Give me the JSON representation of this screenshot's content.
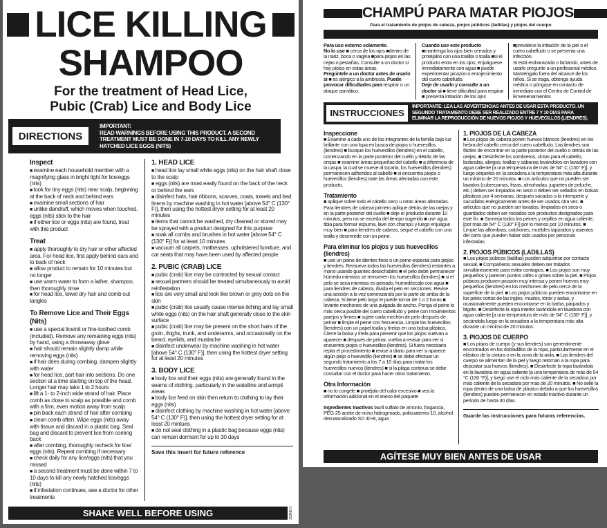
{
  "english": {
    "title_line1": "LICE KILLING",
    "title_line2": "SHAMPOO",
    "subtitle_line1": "For the treatment of Head Lice,",
    "subtitle_line2": "Pubic (Crab) Lice and Body Lice",
    "directions_label": "DIRECTIONS",
    "important_heading": "IMPORTANT:",
    "important_text": "READ WARNINGS BEFORE USING THIS PRODUCT.  A SECOND TREATMENT MUST BE DONE IN 7-10 DAYS TO KILL ANY NEWLY HATCHED LICE EGGS (NITS)",
    "left_sections": [
      {
        "heading": "Inspect",
        "items": [
          "examine each household member with a magnifying glass in bright light for lice/eggs (nits)",
          "look for tiny eggs (nits) near scalp, beginning at the back of neck and behind ears",
          "examine small sections of hair",
          "unlike dandruff, which moves when touched, eggs (nits) stick to the hair",
          "if either lice or eggs (nits) are found, treat with this product"
        ]
      },
      {
        "heading": "Treat",
        "items": [
          "apply thoroughly to dry hair or other affected area.  For head lice, first apply behind ears and to back of neck",
          "allow product to remain for 10 minutes but no longer",
          "use warm water to form a lather, shampoo, then thoroughly rinse",
          "for head lice, towel dry hair and comb out tangles"
        ]
      },
      {
        "heading": "To Remove Lice and Their Eggs (Nits)",
        "items": [
          "use a special lice/nit or fine-toothed comb (included).  Remove any remaining eggs (nits) by hand, using a throwaway glove",
          "hair should remain slightly damp while removing eggs (nits)",
          "if hair dries during combing, dampen slightly with water",
          "for head lice, part hair into sections.  Do one section at a time starting on top of the head. Longer hair may take 1 to 2 hours",
          "lift a 1- to 2-inch wide strand of hair. Place comb as close to scalp as possible and comb with a firm, even motion away from scalp",
          "pin back each strand of hair after combing",
          "clean comb often.  Wipe eggs (nits) away with tissue and discard in a plastic bag.  Seal bag and discard to prevent lice from coming back",
          "after combing, thoroughly recheck for lice/ eggs (nits).  Repeat combing if necessary",
          "check daily for any lice/eggs (nits) that you missed",
          "a second treatment must be done within 7 to 10 days to kill any newly hatched lice/eggs (nits)",
          "if infestation continues, see a doctor for other treatments"
        ]
      }
    ],
    "right_sections": [
      {
        "heading": "1.  HEAD LICE",
        "items": [
          "head lice lay small white eggs (nits) on the hair shaft close to the scalp",
          "eggs (nits) are most easily found on the back of the neck or behind the ears",
          "disinfect hats, hair ribbons, scarves, coats, towels and bed linens by machine washing in hot water [above 54° C (130° F)], then using the hottest dryer setting for at least 20 minutes",
          "items that cannot be washed, dry cleaned or stored may be sprayed with a product designed for this purpose",
          "soak all combs and brushes in hot water [above 54° C (130° F)] for at least 10 minutes",
          "vacuum all carpets, mattresses, upholstered furniture, and car seats that may have been used by affected people"
        ]
      },
      {
        "heading": "2.  PUBIC (CRAB) LICE",
        "items": [
          "pubic (crab) lice may be contracted by sexual contact",
          "sexual partners should be treated simultaneously to avoid reinfestation",
          "lice are very small and look like brown or grey dots on the skin",
          "pubic (crab) lice usually cause intense itching and lay small white eggs (nits) on the hair shaft generally close to the skin surface",
          "pubic (crab) lice may be present on the short hairs of the groin, thighs, trunk, and underarms, and occasionally on the beard, eyelids, and mustache",
          "disinfect underwear by machine washing in hot water [above 54° C (130° F)], then using the hottest dryer setting for at least 20 minutes"
        ]
      },
      {
        "heading": "3.  BODY LICE",
        "items": [
          "body lice and their eggs (nits) are generally found in the seams of clothing, particularly in the waistline and armpit areas",
          "body lice feed on skin then return to clothing to lay their eggs (nits)",
          "disinfect clothing by machine washing in hot water [above 54° C (130° F)], then using the hottest dryer setting for at least 20 mintues",
          "do not seal clothing in a plastic bag because eggs (nits) can remain dormant for up to 30 days"
        ]
      }
    ],
    "save_note": "Save this insert for future reference",
    "bottom_banner": "SHAKE WELL BEFORE USING",
    "code": "253N6.0"
  },
  "spanish": {
    "title": "CHAMPÚ PARA MATAR PIOJOS",
    "subtitle": "Para el tratamiento de piojos de cabeza, piojos públicos (ladillas) y piojos del cuerpo",
    "warnings": [
      [
        [
          [
            "Para uso externo solamente.",
            true
          ]
        ],
        [
          [
            "No lo use ",
            true
          ],
          [
            "■ cerca de los ojos ■dentro de la nariz, boca o vagina ■para piojos en las cejas o pestañas. Consulte a un doctor si hay piojos en estas áreas.",
            false
          ]
        ],
        [
          [
            "Pregúntele a un doctor antes de usarlo si ",
            true
          ],
          [
            "■ es alérgico a la ambrosía. ",
            false
          ],
          [
            "Puede provocar dificultades para",
            true
          ],
          [
            " respirar o un ataque asmático.",
            false
          ]
        ]
      ],
      [
        [
          [
            "Cuando use este producto",
            true
          ]
        ],
        [
          [
            "■mantenga los ojos bien cerrados y protéjalos con una toallita o toalla ■si el producto entra en los ojos, enjuáguese inmediatamente con agua ■ puede experimentar picazón o enrojecimiento del cuero cabelludo.",
            false
          ]
        ],
        [
          [
            "Deje de usarlo y consulte a un doctor si ",
            true
          ],
          [
            "■ tiene dificultad para respirar ■  presenta irritación de los ojos",
            false
          ]
        ]
      ],
      [
        [
          [
            "■prevalece la irritación de la piel o el cuero cabelludo o se presenta una infección.",
            false
          ]
        ],
        [
          [
            "Si está embarazada o lactando, antes de usarlo pregunte a un profesional médico.  Manténgalo fuera del alcance de los niños.  Si se traga, obtenga ayuda médica o póngase en contacto de inmediato con el Centro de Control de Envenenamientos",
            false
          ]
        ]
      ]
    ],
    "instructions_label": "INSTRUCCIONES",
    "important_text": "IMPORTANTE:  LEA LAS ADVERTENCIAS ANTES DE USAR ESTA PRODUCTO. UN SEGUNDO TRATAMIENTO DEBE SER REALIZADO ENTRE 7 Y 10 DIAS PARA ELIMINAR LA REPRODUCCIÓN DE NUEVOS PIOJOS Y HUEVECILLOS (LIENDRES).",
    "left_sections": [
      {
        "heading": "Inspeccione",
        "text": "■ Examine a cada uno de los integrantes de la familia bajo luz brillante con una lupa en busca de piojos o huevecillos (liendres) ■ busque los huevecillos (liendres) en el cabello, comenzando en la parte posterior del cuello y detrás de las orejas ■ examine áreas pequeñas del cabello ■ a diferencia de la caspa, la cual se mueve al tocarla, los huevecillos (liendres) permanecen adheridos al cabello ■ si encuentra piojos o huevecillos (liendres) trate las áreas afectadas con este producto."
      },
      {
        "heading": "Tratamiento",
        "text": "■ aplique sobre todo el cabello seco u otras áreas afectadas. Para liendres de cabeza primero aplique detrás de las orejas y en la parte posterior del cuello ■ deje el producto durante 10 minutos, pero no se exceda del tiempo sugerido ■ use agua tibia para formar espuma, lave con champú y luego enjuague muy bien ■ para liendres de cabeza, seque el cabello con una toalla y desenrede con un peine."
      },
      {
        "heading": "Para eliminar los piojos y sus huevecillos (liendres)",
        "text": "■ use un peine de dientes finos o un peine especial para piojos y liendres.  Remueva todos las huevecillos (liendres) restantes a mano usando guantes desechables ■ el pelo debe permanecer húmedo mientras se remueven los huevecillos (liendres) ■ si el pelo se seca mientras es peinado, humedézcalo con agua ■ para liendres de cabeza, divida el pelo en secciones.  Revise una sección a la vez comenzando por la parte de arriba de la cabeza.  Si tiene pelo largo le puede tomar de 1 o 2 horas ■ levante mechones de una pulgada de ancho.  Ponga el peine lo más cerca posible del cuero cabelludo y peine con movimientos parejos y firmes ■ sujete cada mechón de pelo después de peinar ■ limpie el peine con frecuencia.  Limpie los huevecillos (liendres) con un papel toalla y tírelas en una bolsa plástica.  Cierre la bolsa y tírela para prevenir que los piojos vuelvan a aparecer ■ después de peinar, vuelva a revisar para ver si encuentra piojos o huevecillos (liendres).  Si fuera necesario repita el procedimiento ■ revise a diario para ver si aparece algún piojo o huevecillo (liendres)  ■ se debe efectuar un segundo tratamiento a los 7 a 10 días para matar los huevecillos nuevos (liendres) ■ si la plaga continua se debe consultar con el doctor para hacer otros tratamiento."
      },
      {
        "heading": "Otra Información",
        "text": "■ no lo congele  ■ protéjalo del calor excesivo ■ vea la información adicional en el anexo del paquete"
      }
    ],
    "ingredients_label": "Ingredientes Inactivos",
    "ingredients_text": " lauril sulfato de amonio, fragancia, PEG-25 aceite de ricino hidrogenado, policuaternio-10, alcohol desnaturalizado SD 40-B, agua",
    "right_sections": [
      {
        "heading": "1.  PIOJOS DE LA CABEZA",
        "text": "■ Los piojos de cabeza ponen huevos blancos (liendres) en los hebra del cabello cerca del cuero cabelludo.  Las liendres son fáciles de encontrar en la parte posterior del cuello o detrás de las orejas.  ■ Desinfecte los sombreros, cintas para el cabello, bufandas, abrigos, toallas y sábanas lavándolos en lavadora con agua caliente [a una temperatura de más de 54° C (130° F)], y luego séquelos en la secadora a la temperatura más alta durante un mínimo de 20 minutos.  ■ Los artículos que no pueden ser lavados (cubrecamas, frizas, almohadas, juguetes de peluche, etc.) deben ser limpiados en seco o deben ser sellados en bolsas plásticas por 4 semanas, después sacados a la intemperie y sacudidos enérgicamente antes de ser usados otra vez. ■ artículos que no pueden ser lavados, limpiados en seco o guardados deben ser rociados con productos designados para este fin. ■ Sumerja todos los peines y cepillos en agua caliente, [por más de 54° C (130° F)] por lo menos por 10 minutos.  ■ Limpie las alfombras, colchones, muebles tapizados y asientos del carro que pueden haber sido usados por personas infectadas."
      },
      {
        "heading": "2. PIOJOS PÚBICOS (LADILLAS)",
        "text": "■ Los piojos púbicos (ladillas) pueden adquirirse por contacto sexual. ■ Compañeros sexuales deben ser tratados simultáneamente para evitar contagios. ■ Los piojos son muy pequeños y parecen puntos cafés o grises sobre la piel. ■ Piojos púbicos producen picazón muy intensa y ponen huevos muy pequeños (liendres) en los mechones de pelo cerca de la superficie de la piel. ■ Los piojos púbicos pueden encontrarse en los pelos cortos de las ingles, muslos, tórax y axilas, y ocasionalmente pueden encontrarse en la barba, párpados y bigote.  ■ Desinfecte la ropa interior lavándola en lavadora con agua caliente [a una temperatura de más de 54° C (130° F)], y secándola luego en la secadora a la temperatura más alta durante un mínimo de 20 minutos."
      },
      {
        "heading": "3.  PIOJOS DE CUERPO",
        "text": "■ Los piojos de cuerpo (y sus liendres) son generalmente encontrados en los dobladillos de la ropa, particularmente en el elástico de la cintura o en la zona de la axila. ■ Las liendres del cuerpo se alimentan de la piel y luego retornan a la ropa para depositar sus huevos (liendres). ■ Desinfecte la ropa lavándola en la lavadora en agua caliente [a una temperatura de más de 54 °C (130 °F)], y luego use el ciclo más caliente de la secadora por más caliente de la secadora por más de 20 minutos. ■ No selle la ropa dentro de una bolsa de plástico debido a que los huevecillos (liendres) pueden permanecer en estado inactivo durante un período de hasta 30 días."
      }
    ],
    "save_note": "Guarde las instrucciones para futuras referencias.",
    "bottom_banner": "AGÍTESE MUY BIEN ANTES DE USAR"
  }
}
